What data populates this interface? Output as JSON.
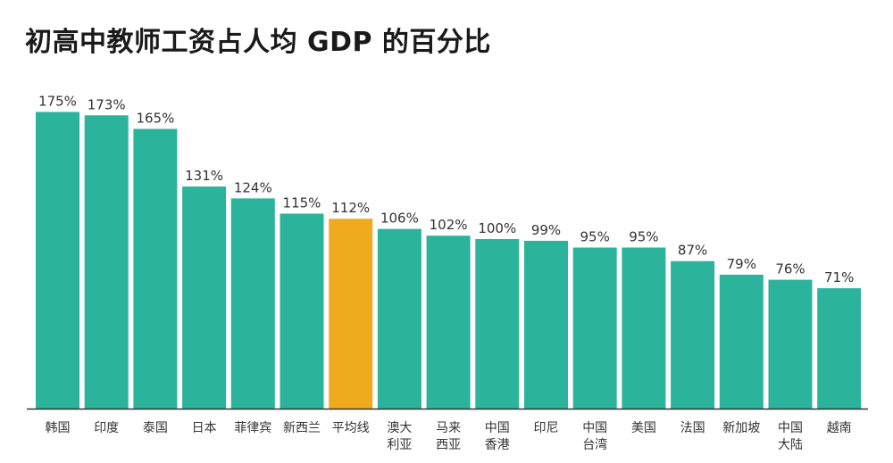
{
  "chart_data": {
    "type": "bar",
    "title": "初高中教师工资占人均 GDP 的百分比",
    "categories": [
      "韩国",
      "印度",
      "泰国",
      "日本",
      "菲律宾",
      "新西兰",
      "平均线",
      "澳大利亚",
      "马来西亚",
      "中国香港",
      "印尼",
      "中国台湾",
      "美国",
      "法国",
      "新加坡",
      "中国大陆",
      "越南"
    ],
    "category_lines": [
      [
        "韩国"
      ],
      [
        "印度"
      ],
      [
        "泰国"
      ],
      [
        "日本"
      ],
      [
        "菲律宾"
      ],
      [
        "新西兰"
      ],
      [
        "平均线"
      ],
      [
        "澳大",
        "利亚"
      ],
      [
        "马来",
        "西亚"
      ],
      [
        "中国",
        "香港"
      ],
      [
        "印尼"
      ],
      [
        "中国",
        "台湾"
      ],
      [
        "美国"
      ],
      [
        "法国"
      ],
      [
        "新加坡"
      ],
      [
        "中国",
        "大陆"
      ],
      [
        "越南"
      ]
    ],
    "values": [
      175,
      173,
      165,
      131,
      124,
      115,
      112,
      106,
      102,
      100,
      99,
      95,
      95,
      87,
      79,
      76,
      71
    ],
    "value_labels": [
      "175%",
      "173%",
      "165%",
      "131%",
      "124%",
      "115%",
      "112%",
      "106%",
      "102%",
      "100%",
      "99%",
      "95%",
      "95%",
      "87%",
      "79%",
      "76%",
      "71%"
    ],
    "highlight_category": "平均线",
    "colors": {
      "bar": "#2bb39b",
      "highlight": "#f0aa1e",
      "axis": "#333333",
      "text": "#333333"
    },
    "ylim": [
      0,
      180
    ],
    "grid": false
  }
}
